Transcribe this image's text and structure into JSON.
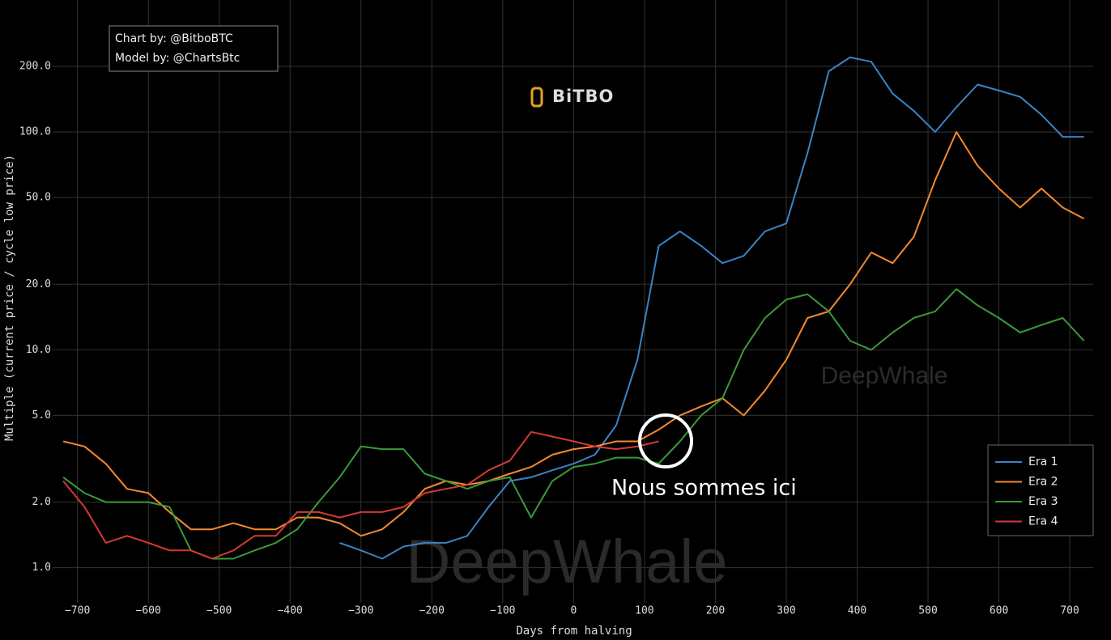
{
  "chart_data": {
    "type": "line",
    "annotations": {
      "credit_chart": "Chart by: @BitboBTC",
      "credit_model": "Model by: @ChartsBtc",
      "logo": "BiTBO",
      "watermark_small": "DeepWhale",
      "watermark_large": "DeepWhale",
      "callout": "Nous sommes ici"
    },
    "x_label": "Days from halving",
    "y_label": "Multiple (current price / cycle low price)",
    "log_y": true,
    "grid": true,
    "legend": "bottom-right",
    "xlim": [
      -735,
      733
    ],
    "ylim": [
      0.69,
      340
    ],
    "xticks": [
      {
        "value": -700,
        "label": "−700"
      },
      {
        "value": -600,
        "label": "−600"
      },
      {
        "value": -500,
        "label": "−500"
      },
      {
        "value": -400,
        "label": "−400"
      },
      {
        "value": -300,
        "label": "−300"
      },
      {
        "value": -200,
        "label": "−200"
      },
      {
        "value": -100,
        "label": "−100"
      },
      0,
      100,
      200,
      300,
      400,
      500,
      600,
      700
    ],
    "yticks": [
      {
        "value": 1,
        "label": "1.0"
      },
      {
        "value": 2,
        "label": "2.0"
      },
      {
        "value": 5,
        "label": "5.0"
      },
      {
        "value": 10,
        "label": "10.0"
      },
      {
        "value": 20,
        "label": "20.0"
      },
      {
        "value": 50,
        "label": "50.0"
      },
      {
        "value": 100,
        "label": "100.0"
      },
      {
        "value": 200,
        "label": "200.0"
      }
    ],
    "x": [
      -720,
      -690,
      -660,
      -630,
      -600,
      -570,
      -540,
      -510,
      -480,
      -450,
      -420,
      -390,
      -360,
      -330,
      -300,
      -270,
      -240,
      -210,
      -180,
      -150,
      -120,
      -90,
      -60,
      -30,
      0,
      30,
      60,
      90,
      120,
      150,
      180,
      210,
      240,
      270,
      300,
      330,
      360,
      390,
      420,
      450,
      480,
      510,
      540,
      570,
      600,
      630,
      660,
      690,
      720
    ],
    "series": [
      {
        "name": "Era 1",
        "color": "#3b83c4",
        "values": [
          null,
          null,
          null,
          null,
          null,
          null,
          null,
          null,
          null,
          null,
          null,
          null,
          null,
          1.3,
          1.2,
          1.1,
          1.25,
          1.3,
          1.3,
          1.4,
          1.9,
          2.5,
          2.6,
          2.8,
          3.0,
          3.3,
          4.5,
          9,
          30,
          35,
          30,
          25,
          27,
          35,
          38,
          80,
          190,
          220,
          210,
          150,
          125,
          100,
          130,
          165,
          155,
          145,
          120,
          95,
          95
        ]
      },
      {
        "name": "Era 2",
        "color": "#f5892f",
        "values": [
          3.8,
          3.6,
          3.0,
          2.3,
          2.2,
          1.8,
          1.5,
          1.5,
          1.6,
          1.5,
          1.5,
          1.7,
          1.7,
          1.6,
          1.4,
          1.5,
          1.8,
          2.3,
          2.5,
          2.4,
          2.5,
          2.7,
          2.9,
          3.3,
          3.5,
          3.6,
          3.8,
          3.8,
          4.3,
          5.0,
          5.5,
          6.0,
          5.0,
          6.5,
          9,
          14,
          15,
          20,
          28,
          25,
          33,
          60,
          100,
          70,
          55,
          45,
          55,
          45,
          40
        ]
      },
      {
        "name": "Era 3",
        "color": "#3a9a3a",
        "values": [
          2.6,
          2.2,
          2.0,
          2.0,
          2.0,
          1.9,
          1.2,
          1.1,
          1.1,
          1.2,
          1.3,
          1.5,
          2.0,
          2.6,
          3.6,
          3.5,
          3.5,
          2.7,
          2.5,
          2.3,
          2.5,
          2.6,
          1.7,
          2.5,
          2.9,
          3.0,
          3.2,
          3.2,
          3.0,
          3.8,
          5.0,
          6.0,
          10,
          14,
          17,
          18,
          15,
          11,
          10,
          12,
          14,
          15,
          19,
          16,
          14,
          12,
          13,
          14,
          11
        ]
      },
      {
        "name": "Era 4",
        "color": "#d43a35",
        "values": [
          2.5,
          1.9,
          1.3,
          1.4,
          1.3,
          1.2,
          1.2,
          1.1,
          1.2,
          1.4,
          1.4,
          1.8,
          1.8,
          1.7,
          1.8,
          1.8,
          1.9,
          2.2,
          2.3,
          2.4,
          2.8,
          3.1,
          4.2,
          4.0,
          3.8,
          3.6,
          3.5,
          3.6,
          3.8,
          null,
          null,
          null,
          null,
          null,
          null,
          null,
          null,
          null,
          null,
          null,
          null,
          null,
          null,
          null,
          null,
          null,
          null,
          null,
          null
        ]
      }
    ]
  }
}
